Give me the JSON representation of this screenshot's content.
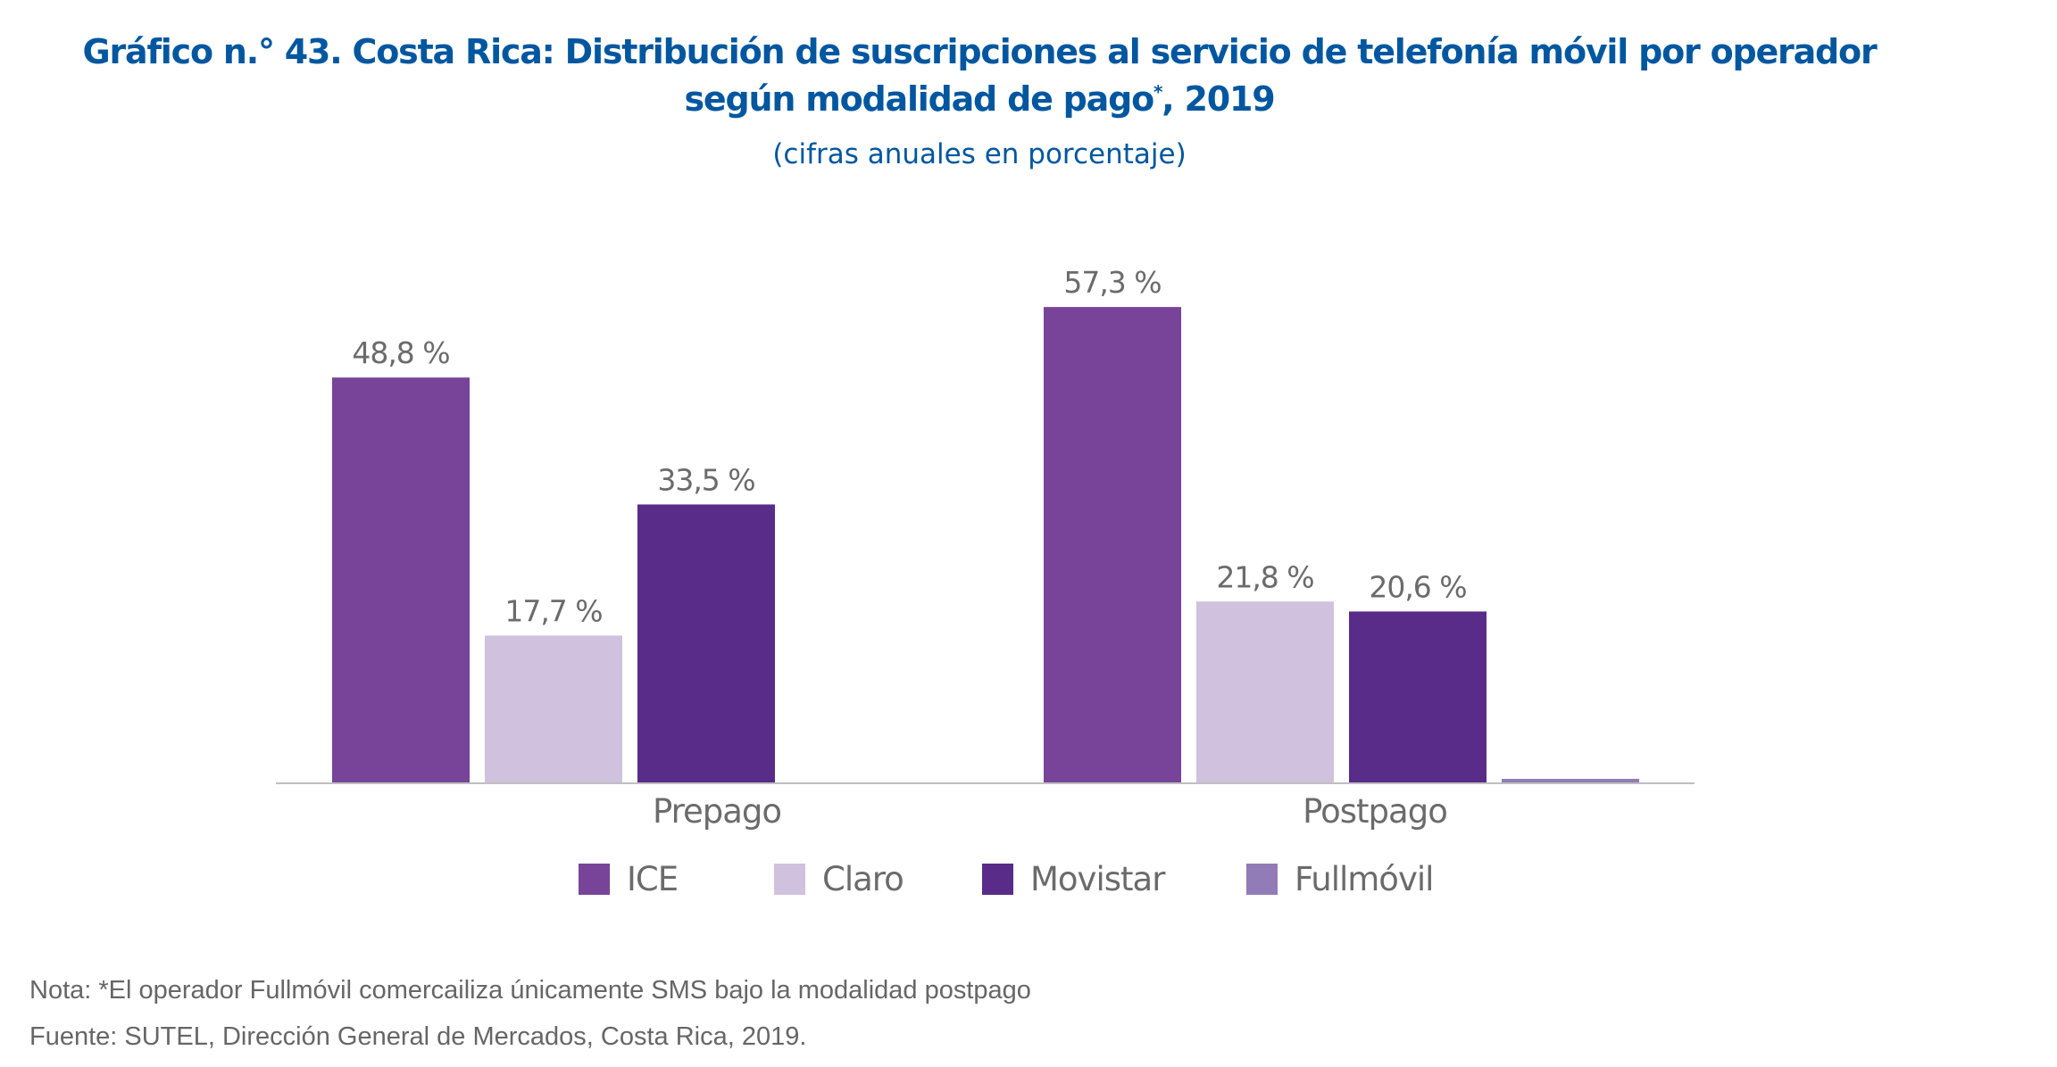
{
  "header": {
    "title_line1": "Gráfico n.° 43. Costa Rica: Distribución de suscripciones al servicio de telefonía móvil por operador",
    "title_line2_main": "según modalidad de pago",
    "title_line2_sup": "*",
    "title_line2_tail": ", 2019",
    "subtitle": "(cifras anuales en porcentaje)"
  },
  "footer": {
    "note": "Nota: *El operador Fullmóvil comercailiza únicamente SMS bajo la modalidad postpago",
    "source": "Fuente: SUTEL, Dirección General de Mercados, Costa Rica, 2019."
  },
  "chart_data": {
    "type": "bar",
    "title": "Gráfico n.° 43. Costa Rica: Distribución de suscripciones al servicio de telefonía móvil por operador según modalidad de pago*, 2019",
    "subtitle": "(cifras anuales en porcentaje)",
    "categories": [
      "Prepago",
      "Postpago"
    ],
    "series": [
      {
        "name": "ICE",
        "color": "#774499",
        "values": [
          48.8,
          57.3
        ],
        "labels": [
          "48,8 %",
          "57,3 %"
        ]
      },
      {
        "name": "Claro",
        "color": "#d0c1de",
        "values": [
          17.7,
          21.8
        ],
        "labels": [
          "17,7 %",
          "21,8 %"
        ]
      },
      {
        "name": "Movistar",
        "color": "#582c88",
        "values": [
          33.5,
          20.6
        ],
        "labels": [
          "33,5 %",
          "20,6 %"
        ]
      },
      {
        "name": "Fullmóvil",
        "color": "#917cb7",
        "values": [
          null,
          0.3
        ],
        "labels": [
          null,
          null
        ]
      }
    ],
    "xlabel": "",
    "ylabel": "",
    "ylim": [
      0,
      60
    ],
    "grid": false,
    "y_axis_visible": false,
    "legend_position": "bottom",
    "label_color": "#6b6b6b",
    "axis_color": "#bfbfbf"
  }
}
